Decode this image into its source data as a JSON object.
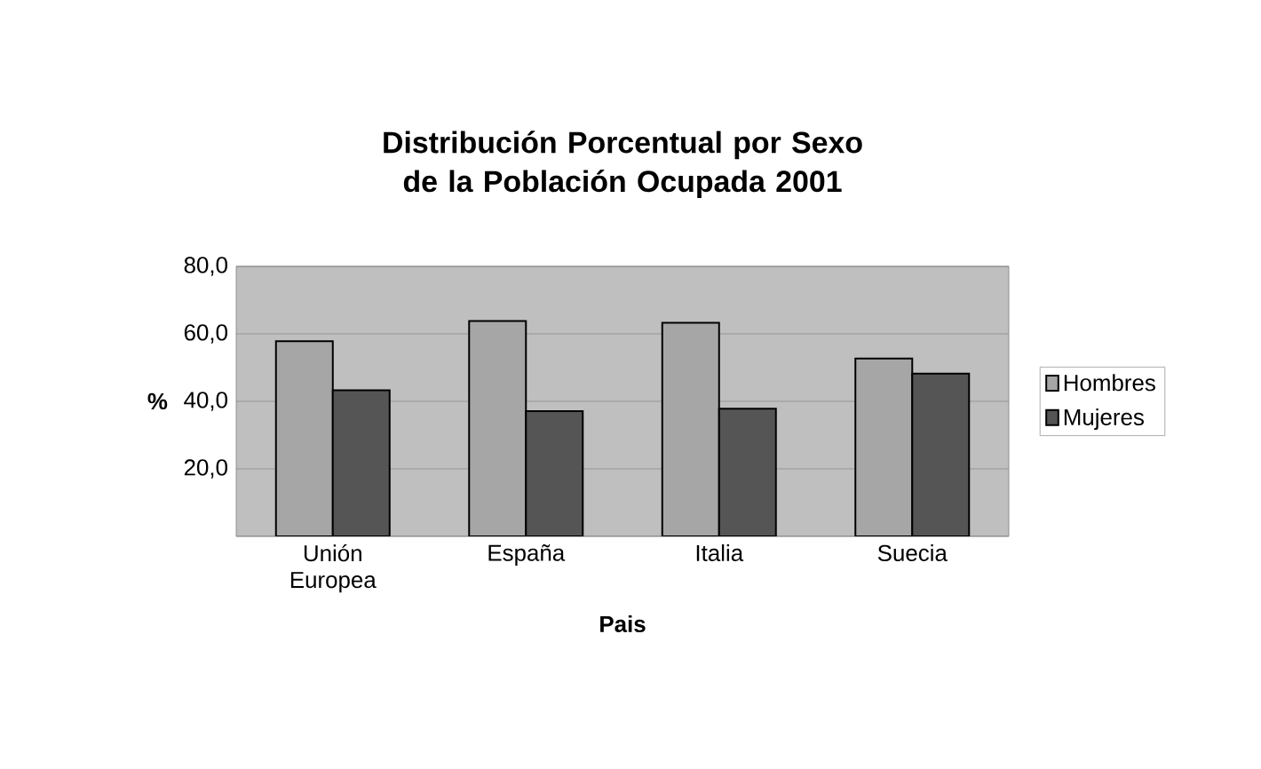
{
  "chart_data": {
    "type": "bar",
    "title": "Distribución Porcentual por Sexo de la Población Ocupada 2001",
    "xlabel": "Pais",
    "ylabel": "%",
    "categories": [
      "Unión Europea",
      "España",
      "Italia",
      "Suecia"
    ],
    "series": [
      {
        "name": "Hombres",
        "color": "#a6a6a6",
        "values": [
          57.8,
          63.8,
          63.3,
          52.7
        ]
      },
      {
        "name": "Mujeres",
        "color": "#555555",
        "values": [
          43.3,
          37.1,
          37.8,
          48.2
        ]
      }
    ],
    "ylim": [
      0,
      80
    ],
    "yticks": [
      {
        "value": 0,
        "label": null
      },
      {
        "value": 20,
        "label": "20,0"
      },
      {
        "value": 40,
        "label": "40,0"
      },
      {
        "value": 60,
        "label": "60,0"
      },
      {
        "value": 80,
        "label": "80,0"
      }
    ],
    "grid": "y",
    "legend": "right"
  }
}
